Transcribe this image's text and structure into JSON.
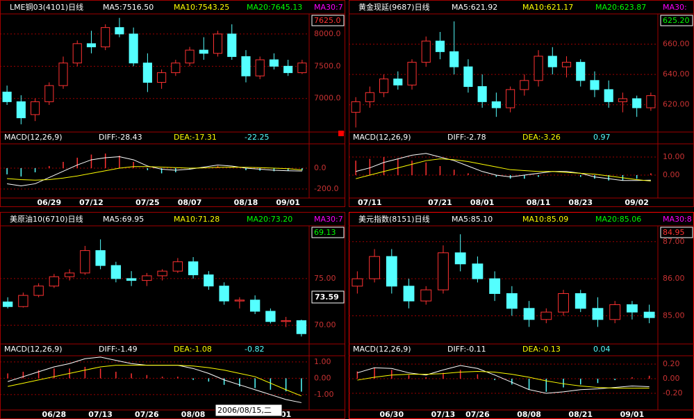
{
  "chart_data": [
    {
      "type": "candlestick",
      "title": "LME铜03(4101)日线",
      "indicators": [
        {
          "label": "MA5:7516.50",
          "color": "#ffffff"
        },
        {
          "label": "MA10:7543.25",
          "color": "#ffff00"
        },
        {
          "label": "MA20:7645.13",
          "color": "#00ff00"
        },
        {
          "label": "MA30:7",
          "color": "#ff00ff"
        }
      ],
      "last_price_label": "7625.0",
      "last_price_color": "#ff3232",
      "categories": [
        null,
        null,
        null,
        "06/29",
        null,
        null,
        "07/12",
        null,
        null,
        null,
        "07/25",
        null,
        null,
        "08/07",
        null,
        null,
        null,
        "08/18",
        null,
        null,
        "09/01",
        null
      ],
      "open": [
        7100,
        6950,
        6750,
        6950,
        7200,
        7550,
        7850,
        7800,
        8100,
        8000,
        7550,
        7250,
        7400,
        7550,
        7750,
        7700,
        8000,
        7650,
        7350,
        7600,
        7500,
        7400
      ],
      "high": [
        7200,
        7050,
        7000,
        7250,
        7650,
        7900,
        8050,
        8150,
        8250,
        8100,
        7700,
        7450,
        7600,
        7800,
        7950,
        8050,
        8150,
        7750,
        7650,
        7700,
        7600,
        7600
      ],
      "low": [
        6900,
        6600,
        6650,
        6900,
        7150,
        7500,
        7700,
        7750,
        7950,
        7500,
        7100,
        7150,
        7350,
        7500,
        7600,
        7650,
        7600,
        7250,
        7300,
        7450,
        7350,
        7380
      ],
      "close": [
        6950,
        6700,
        6950,
        7200,
        7550,
        7850,
        7800,
        8100,
        8000,
        7550,
        7250,
        7400,
        7550,
        7750,
        7700,
        8000,
        7650,
        7350,
        7600,
        7500,
        7400,
        7550
      ],
      "ylim": [
        6480,
        8290
      ],
      "yticks": [
        {
          "value": 8000,
          "label": "8000.0"
        },
        {
          "value": 7500,
          "label": "7500.0"
        },
        {
          "value": 7000,
          "label": "7000.0"
        }
      ],
      "macd": {
        "title": "MACD(12,26,9)",
        "diff_label": "DIFF:-28.43",
        "dea_label": "DEA:-17.31",
        "macd_label": "-22.25",
        "hist": [
          -60,
          -80,
          -40,
          20,
          60,
          100,
          130,
          140,
          120,
          60,
          -20,
          -50,
          -40,
          -10,
          10,
          20,
          0,
          -20,
          -25,
          -30,
          -25,
          -22
        ],
        "diff": [
          -150,
          -170,
          -150,
          -90,
          -30,
          30,
          80,
          100,
          110,
          80,
          20,
          -10,
          -20,
          -10,
          10,
          30,
          20,
          0,
          -10,
          -20,
          -25,
          -28
        ],
        "dea": [
          -100,
          -110,
          -115,
          -110,
          -95,
          -75,
          -50,
          -25,
          0,
          15,
          15,
          10,
          5,
          0,
          2,
          8,
          10,
          8,
          5,
          0,
          -5,
          -17
        ],
        "ylim": [
          -287,
          233
        ],
        "yticks": [
          {
            "value": 0,
            "label": "0.0"
          },
          {
            "value": -200,
            "label": "-200.0"
          }
        ]
      }
    },
    {
      "type": "candlestick",
      "title": "黄金现延(9687)日线",
      "indicators": [
        {
          "label": "MA5:621.92",
          "color": "#ffffff"
        },
        {
          "label": "MA10:621.17",
          "color": "#ffff00"
        },
        {
          "label": "MA20:623.87",
          "color": "#00ff00"
        },
        {
          "label": "MA30:",
          "color": "#ff00ff"
        }
      ],
      "last_price_label": "625.20",
      "last_price_color": "#00ff00",
      "categories": [
        null,
        "07/11",
        null,
        null,
        null,
        null,
        "07/21",
        null,
        null,
        "08/01",
        null,
        null,
        null,
        "08/11",
        null,
        null,
        "08/23",
        null,
        null,
        null,
        "09/02",
        null
      ],
      "open": [
        615,
        622,
        628,
        637,
        633,
        648,
        662,
        655,
        645,
        632,
        622,
        618,
        630,
        636,
        652,
        645,
        648,
        636,
        630,
        622,
        624,
        618
      ],
      "high": [
        625,
        632,
        640,
        642,
        650,
        665,
        668,
        675,
        650,
        640,
        628,
        632,
        640,
        656,
        658,
        652,
        650,
        642,
        636,
        628,
        626,
        628
      ],
      "low": [
        605,
        618,
        625,
        630,
        630,
        645,
        650,
        640,
        628,
        618,
        612,
        615,
        626,
        632,
        640,
        638,
        632,
        625,
        618,
        615,
        612,
        616
      ],
      "close": [
        622,
        628,
        637,
        633,
        648,
        662,
        655,
        645,
        632,
        622,
        618,
        630,
        636,
        652,
        645,
        648,
        636,
        630,
        622,
        624,
        618,
        626
      ],
      "ylim": [
        602,
        679
      ],
      "yticks": [
        {
          "value": 660,
          "label": "660.00"
        },
        {
          "value": 640,
          "label": "640.00"
        },
        {
          "value": 620,
          "label": "620.00"
        }
      ],
      "macd": {
        "title": "MACD(12,26,9)",
        "diff_label": "DIFF:-2.78",
        "dea_label": "DEA:-3.26",
        "macd_label": "0.97",
        "hist": [
          8,
          9,
          10,
          9,
          8,
          7,
          5,
          3,
          1,
          0,
          -1,
          -2,
          -2,
          -1,
          0,
          0,
          -1,
          -2,
          -3,
          -3,
          -2,
          1
        ],
        "diff": [
          2,
          4,
          7,
          9,
          11,
          12,
          10,
          8,
          5,
          2,
          0,
          -1,
          0,
          1,
          2,
          2,
          1,
          -1,
          -2,
          -3,
          -3,
          -2.8
        ],
        "dea": [
          -2,
          0,
          2,
          4,
          6,
          8,
          9,
          8.5,
          7.5,
          6,
          4.5,
          3,
          2.5,
          2,
          2,
          1.5,
          1,
          0.5,
          -0.5,
          -1.5,
          -2.5,
          -3.3
        ],
        "ylim": [
          -12.7,
          17.3
        ],
        "yticks": [
          {
            "value": 10,
            "label": "10.00"
          },
          {
            "value": 0,
            "label": "0.00"
          }
        ]
      }
    },
    {
      "type": "candlestick",
      "title": "美原油10(6710)日线",
      "indicators": [
        {
          "label": "MA5:69.95",
          "color": "#ffffff"
        },
        {
          "label": "MA10:71.28",
          "color": "#ffff00"
        },
        {
          "label": "MA20:73.20",
          "color": "#00ff00"
        },
        {
          "label": "MA30:7",
          "color": "#ff00ff"
        }
      ],
      "last_price_label": "69.13",
      "last_price_color": "#00ff00",
      "cursor_price_label": "73.59",
      "cursor_date_label": "2006/08/15,二",
      "categories": [
        null,
        null,
        null,
        "06/28",
        null,
        null,
        "07/13",
        null,
        null,
        "07/26",
        null,
        null,
        "08/08",
        null,
        null,
        null,
        null,
        null,
        "01",
        null
      ],
      "open": [
        72.5,
        72,
        73.2,
        74.2,
        75.2,
        75.6,
        78,
        76.4,
        75,
        74.8,
        75.3,
        75.8,
        76.8,
        75.4,
        74.2,
        72.6,
        72.7,
        71.5,
        70.4,
        70.5
      ],
      "high": [
        73,
        73.5,
        74.5,
        75.5,
        76,
        78.5,
        79.2,
        76.8,
        75.8,
        75.6,
        76,
        77.2,
        77.3,
        75.8,
        74.6,
        73,
        73.2,
        71.8,
        70.9,
        70.6
      ],
      "low": [
        71.8,
        71.9,
        73,
        74,
        74.8,
        75.4,
        76,
        74.6,
        74.2,
        74.2,
        74.8,
        75.6,
        75,
        73.8,
        72.2,
        71.8,
        71.2,
        70.2,
        69.8,
        68.8
      ],
      "close": [
        72,
        73.2,
        74.2,
        75.2,
        75.6,
        78,
        76.4,
        75,
        74.8,
        75.3,
        75.8,
        76.8,
        75.4,
        74.2,
        72.6,
        72.7,
        71.5,
        70.4,
        70.5,
        69.1
      ],
      "ylim": [
        68,
        80.5
      ],
      "yticks": [
        {
          "value": 75,
          "label": "75.00"
        },
        {
          "value": 70,
          "label": "70.00"
        }
      ],
      "macd": {
        "title": "MACD(12,26,9)",
        "diff_label": "DIFF:-1.49",
        "dea_label": "DEA:-1.08",
        "macd_label": "-0.82",
        "hist": [
          0.3,
          0.4,
          0.5,
          0.6,
          0.6,
          0.7,
          0.6,
          0.4,
          0.3,
          0.2,
          0.1,
          0.1,
          -0.1,
          -0.2,
          -0.4,
          -0.5,
          -0.6,
          -0.7,
          -0.8,
          -0.82
        ],
        "diff": [
          -0.2,
          0.1,
          0.4,
          0.7,
          0.9,
          1.2,
          1.3,
          1.1,
          0.9,
          0.8,
          0.8,
          0.8,
          0.6,
          0.3,
          -0.1,
          -0.4,
          -0.7,
          -1,
          -1.3,
          -1.49
        ],
        "dea": [
          -0.5,
          -0.3,
          -0.1,
          0.1,
          0.3,
          0.5,
          0.7,
          0.8,
          0.8,
          0.8,
          0.8,
          0.8,
          0.75,
          0.65,
          0.5,
          0.3,
          0.1,
          -0.3,
          -0.7,
          -1.08
        ],
        "ylim": [
          -1.94,
          1.38
        ],
        "yticks": [
          {
            "value": 1,
            "label": "1.00"
          },
          {
            "value": 0,
            "label": "0.00"
          },
          {
            "value": -1,
            "label": "-1.00"
          }
        ]
      }
    },
    {
      "type": "candlestick",
      "title": "美元指数(8151)日线",
      "indicators": [
        {
          "label": "MA5:85.10",
          "color": "#ffffff"
        },
        {
          "label": "MA10:85.09",
          "color": "#ffff00"
        },
        {
          "label": "MA20:85.06",
          "color": "#00ff00"
        },
        {
          "label": "MA30:8",
          "color": "#ff00ff"
        }
      ],
      "last_price_label": "84.95",
      "last_price_color": "#ff3232",
      "categories": [
        null,
        null,
        "06/30",
        null,
        null,
        "07/13",
        null,
        "07/26",
        null,
        null,
        "08/08",
        null,
        null,
        "08/21",
        null,
        null,
        "09/01",
        null
      ],
      "open": [
        85.8,
        86.0,
        86.6,
        85.8,
        85.4,
        85.7,
        86.7,
        86.4,
        86.0,
        85.6,
        85.2,
        84.9,
        85.1,
        85.6,
        85.2,
        84.9,
        85.3,
        85.1
      ],
      "high": [
        86.2,
        86.8,
        86.8,
        86.0,
        85.8,
        86.9,
        87.2,
        86.6,
        86.2,
        85.8,
        85.4,
        85.2,
        85.7,
        85.7,
        85.5,
        85.4,
        85.4,
        85.3
      ],
      "low": [
        85.6,
        85.9,
        85.6,
        85.2,
        85.3,
        85.6,
        86.2,
        85.9,
        85.4,
        85.0,
        84.7,
        84.8,
        85.0,
        85.1,
        84.7,
        84.8,
        84.9,
        84.8
      ],
      "close": [
        86.0,
        86.6,
        85.8,
        85.4,
        85.7,
        86.7,
        86.4,
        86.0,
        85.6,
        85.2,
        84.9,
        85.1,
        85.6,
        85.2,
        84.9,
        85.3,
        85.1,
        84.95
      ],
      "ylim": [
        84.24,
        87.39
      ],
      "yticks": [
        {
          "value": 87,
          "label": "87.00"
        },
        {
          "value": 86,
          "label": "86.00"
        },
        {
          "value": 85,
          "label": "85.00"
        }
      ],
      "macd": {
        "title": "MACD(12,26,9)",
        "diff_label": "DIFF:-0.11",
        "dea_label": "DEA:-0.13",
        "macd_label": "0.04",
        "hist": [
          0.1,
          0.15,
          0.12,
          0.05,
          0.02,
          0.08,
          0.12,
          0.06,
          -0.02,
          -0.08,
          -0.15,
          -0.18,
          -0.12,
          -0.08,
          -0.06,
          -0.02,
          0.02,
          0.04
        ],
        "diff": [
          0.08,
          0.15,
          0.14,
          0.08,
          0.05,
          0.12,
          0.18,
          0.14,
          0.05,
          -0.05,
          -0.15,
          -0.2,
          -0.18,
          -0.15,
          -0.14,
          -0.12,
          -0.1,
          -0.11
        ],
        "dea": [
          -0.02,
          0.02,
          0.05,
          0.06,
          0.06,
          0.07,
          0.09,
          0.1,
          0.09,
          0.06,
          0.02,
          -0.03,
          -0.07,
          -0.1,
          -0.12,
          -0.13,
          -0.13,
          -0.13
        ],
        "ylim": [
          -0.429,
          0.314
        ],
        "yticks": [
          {
            "value": 0.2,
            "label": "0.20"
          },
          {
            "value": 0,
            "label": "0.00"
          },
          {
            "value": -0.2,
            "label": "-0.20"
          }
        ]
      }
    }
  ]
}
